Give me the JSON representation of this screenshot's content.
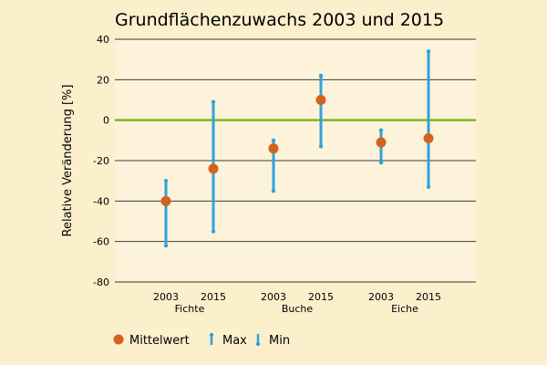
{
  "chart_data": {
    "type": "scatter",
    "title": "Grundflächenzuwachs 2003 und 2015",
    "ylabel": "Relative Veränderung [%]",
    "xlabel": "",
    "ylim": [
      -80,
      40
    ],
    "yticks": [
      40,
      20,
      0,
      -20,
      -40,
      -60,
      -80
    ],
    "grid": true,
    "groups": [
      {
        "name": "Fichte",
        "years": [
          "2003",
          "2015"
        ]
      },
      {
        "name": "Buche",
        "years": [
          "2003",
          "2015"
        ]
      },
      {
        "name": "Eiche",
        "years": [
          "2003",
          "2015"
        ]
      }
    ],
    "points": [
      {
        "group": "Fichte",
        "year": "2003",
        "mean": -40,
        "max": -30,
        "min": -62
      },
      {
        "group": "Fichte",
        "year": "2015",
        "mean": -24,
        "max": 9,
        "min": -55
      },
      {
        "group": "Buche",
        "year": "2003",
        "mean": -14,
        "max": -10,
        "min": -35
      },
      {
        "group": "Buche",
        "year": "2015",
        "mean": 10,
        "max": 22,
        "min": -13
      },
      {
        "group": "Eiche",
        "year": "2003",
        "mean": -11,
        "max": -5,
        "min": -21
      },
      {
        "group": "Eiche",
        "year": "2015",
        "mean": -9,
        "max": 34,
        "min": -33
      }
    ],
    "legend": {
      "position": "bottom",
      "entries": [
        {
          "label": "Mittelwert",
          "marker": "circle"
        },
        {
          "label": "Max",
          "marker": "arrow-up"
        },
        {
          "label": "Min",
          "marker": "arrow-down"
        }
      ]
    },
    "colors": {
      "background": "#fcefcc",
      "plot_area": "#fdf3db",
      "mean": "#d4611e",
      "range": "#2fa3d9",
      "zero_line": "#7cb81f",
      "grid": "#3a3a3a"
    }
  }
}
